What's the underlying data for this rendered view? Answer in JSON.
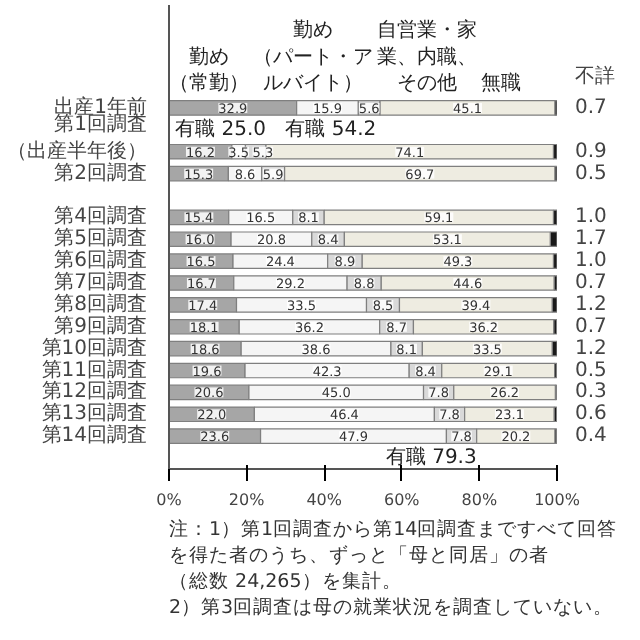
{
  "chart_data": {
    "type": "bar",
    "orientation": "horizontal",
    "stacked": true,
    "legend": "top",
    "categories": [
      "出産1年前",
      null,
      "第1回調査（出産半年後）",
      "第2回調査",
      null,
      "第4回調査",
      "第5回調査",
      "第6回調査",
      "第7回調査",
      "第8回調査",
      "第9回調査",
      "第10回調査",
      "第11回調査",
      "第12回調査",
      "第13回調査",
      "第14回調査",
      null
    ],
    "series": [
      {
        "name": "勤め（常勤）",
        "color": "#a6a6a6",
        "values": [
          32.9,
          null,
          16.2,
          15.3,
          null,
          15.4,
          16.0,
          16.5,
          16.7,
          17.4,
          18.1,
          18.6,
          19.6,
          20.6,
          22.0,
          23.6,
          null
        ],
        "value_labels": [
          "32.9",
          null,
          "16.2",
          "15.3",
          null,
          "15.4",
          "16.0",
          "16.5",
          "16.7",
          "17.4",
          "18.1",
          "18.6",
          "19.6",
          "20.6",
          "22.0",
          "23.6",
          null
        ]
      },
      {
        "name": "勤め（パート・アルバイト）",
        "color": "#f5f5f5",
        "values": [
          15.9,
          null,
          3.5,
          8.6,
          null,
          16.5,
          20.8,
          24.4,
          29.2,
          33.5,
          36.2,
          38.6,
          42.3,
          45.0,
          46.4,
          47.9,
          null
        ],
        "value_labels": [
          "15.9",
          null,
          "3.5",
          "8.6",
          null,
          "16.5",
          "20.8",
          "24.4",
          "29.2",
          "33.5",
          "36.2",
          "38.6",
          "42.3",
          "45.0",
          "46.4",
          "47.9",
          null
        ]
      },
      {
        "name": "自営業・家業、内職、その他",
        "color": "#d9d9d9",
        "values": [
          5.6,
          null,
          5.3,
          5.9,
          null,
          8.1,
          8.4,
          8.9,
          8.8,
          8.5,
          8.7,
          8.1,
          8.4,
          7.8,
          7.8,
          7.8,
          null
        ],
        "value_labels": [
          "5.6",
          null,
          "5.3",
          "5.9",
          null,
          "8.1",
          "8.4",
          "8.9",
          "8.8",
          "8.5",
          "8.7",
          "8.1",
          "8.4",
          "7.8",
          "7.8",
          "7.8",
          null
        ]
      },
      {
        "name": "無職",
        "color": "#eeece1",
        "values": [
          45.1,
          null,
          74.1,
          69.7,
          null,
          59.1,
          53.1,
          49.3,
          44.6,
          39.4,
          36.2,
          33.5,
          29.1,
          26.2,
          23.1,
          20.2,
          null
        ],
        "value_labels": [
          "45.1",
          null,
          "74.1",
          "69.7",
          null,
          "59.1",
          "53.1",
          "49.3",
          "44.6",
          "39.4",
          "36.2",
          "33.5",
          "29.1",
          "26.2",
          "23.1",
          "20.2",
          null
        ]
      },
      {
        "name": "不詳",
        "color": "#1a1a1a",
        "values": [
          0.7,
          null,
          0.9,
          0.5,
          null,
          1.0,
          1.7,
          1.0,
          0.7,
          1.2,
          0.7,
          1.2,
          0.5,
          0.3,
          0.6,
          0.4,
          null
        ],
        "value_labels": [
          "0.7",
          null,
          "0.9",
          "0.5",
          null,
          "1.0",
          "1.7",
          "1.0",
          "0.7",
          "1.2",
          "0.7",
          "1.2",
          "0.5",
          "0.3",
          "0.6",
          "0.4",
          null
        ]
      }
    ],
    "xlim": [
      0,
      100
    ],
    "xticks": [
      {
        "value": 0,
        "label": "0%"
      },
      {
        "value": 20,
        "label": "20%"
      },
      {
        "value": 40,
        "label": "40%"
      },
      {
        "value": 60,
        "label": "60%"
      },
      {
        "value": 80,
        "label": "80%"
      },
      {
        "value": 100,
        "label": "100%"
      }
    ],
    "annotations": [
      {
        "text": "有職 25.0",
        "x": 25.0,
        "y": "第1回調査（出産半年後）"
      },
      {
        "text": "有職 79.3",
        "x": 79.3,
        "y": "第14回調査"
      },
      "有職 54.2",
      "注：1）第1回調査から第14回調査まですべて回答を得た者のうち、ずっと「母と同居」の者（総数 24,265）を集計。",
      "2）第3回調査は母の就業状況を調査していない。"
    ]
  }
}
